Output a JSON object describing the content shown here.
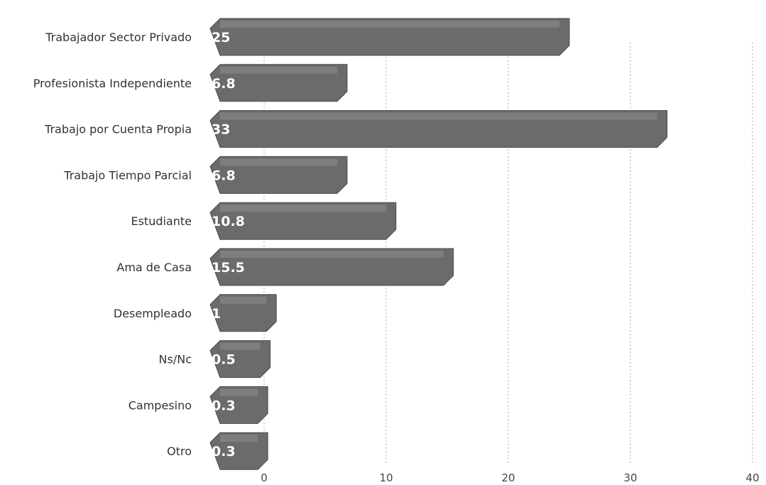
{
  "chart_data": {
    "type": "bar",
    "orientation": "horizontal",
    "categories": [
      "Trabajador Sector Privado",
      "Profesionista Independiente",
      "Trabajo por Cuenta Propia",
      "Trabajo Tiempo Parcial",
      "Estudiante",
      "Ama de Casa",
      "Desempleado",
      "Ns/Nc",
      "Campesino",
      "Otro"
    ],
    "values": [
      25,
      6.8,
      33,
      6.8,
      10.8,
      15.5,
      1,
      0.5,
      0.3,
      0.3
    ],
    "value_labels": [
      "25",
      "6.8",
      "33",
      "6.8",
      "10.8",
      "15.5",
      "1",
      "0.5",
      "0.3",
      "0.3"
    ],
    "xlim": [
      0,
      40
    ],
    "xticks": [
      "0",
      "10",
      "20",
      "30",
      "40"
    ],
    "grid": true,
    "legend": "none",
    "colors": {
      "bar": "#6b6b6b",
      "bar_highlight": "#8a8a8a",
      "grid": "#aaaaaa"
    }
  }
}
